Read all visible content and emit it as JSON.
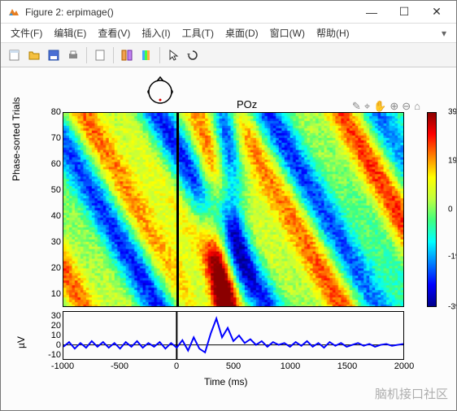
{
  "window": {
    "title": "Figure 2:  erpimage()",
    "min_label": "—",
    "max_label": "☐",
    "close_label": "✕"
  },
  "menu": {
    "items": [
      "文件(F)",
      "编辑(E)",
      "查看(V)",
      "插入(I)",
      "工具(T)",
      "桌面(D)",
      "窗口(W)",
      "帮助(H)"
    ]
  },
  "figure": {
    "channel_label": "POz",
    "background_color": "#ffffff",
    "erpimage": {
      "ylabel": "Phase-sorted Trials",
      "yticks": [
        10,
        20,
        30,
        40,
        50,
        60,
        70,
        80
      ],
      "ylim": [
        5,
        80
      ],
      "xlim": [
        -1000,
        2000
      ],
      "event_time": 0,
      "n_trials": 80,
      "n_time": 120,
      "seed": 7
    },
    "colorbar": {
      "ticks": [
        -39,
        -19,
        0,
        19.5,
        39.1
      ],
      "lim": [
        -39.1,
        39.1
      ],
      "colors": [
        "#00008b",
        "#0000ff",
        "#0080ff",
        "#00ffff",
        "#40ff80",
        "#c0ff40",
        "#ffff00",
        "#ff8000",
        "#ff0000",
        "#8b0000"
      ]
    },
    "erp": {
      "ylabel": "µV",
      "yticks": [
        -10,
        0,
        10,
        20,
        30
      ],
      "ylim": [
        -15,
        35
      ],
      "xlim": [
        -1000,
        2000
      ],
      "line_color": "#0000ff",
      "line_width": 2,
      "points": [
        [
          -1000,
          -2
        ],
        [
          -950,
          3
        ],
        [
          -900,
          -4
        ],
        [
          -850,
          2
        ],
        [
          -800,
          -3
        ],
        [
          -750,
          4
        ],
        [
          -700,
          -2
        ],
        [
          -650,
          3
        ],
        [
          -600,
          -3
        ],
        [
          -550,
          2
        ],
        [
          -500,
          -4
        ],
        [
          -450,
          3
        ],
        [
          -400,
          -2
        ],
        [
          -350,
          4
        ],
        [
          -300,
          -3
        ],
        [
          -250,
          2
        ],
        [
          -200,
          -2
        ],
        [
          -150,
          3
        ],
        [
          -100,
          -4
        ],
        [
          -50,
          2
        ],
        [
          0,
          -3
        ],
        [
          50,
          5
        ],
        [
          100,
          -6
        ],
        [
          150,
          8
        ],
        [
          200,
          -4
        ],
        [
          250,
          -8
        ],
        [
          300,
          12
        ],
        [
          350,
          28
        ],
        [
          400,
          8
        ],
        [
          450,
          18
        ],
        [
          500,
          4
        ],
        [
          550,
          10
        ],
        [
          600,
          2
        ],
        [
          650,
          6
        ],
        [
          700,
          0
        ],
        [
          750,
          4
        ],
        [
          800,
          -2
        ],
        [
          850,
          3
        ],
        [
          900,
          0
        ],
        [
          950,
          2
        ],
        [
          1000,
          -2
        ],
        [
          1050,
          3
        ],
        [
          1100,
          -1
        ],
        [
          1150,
          4
        ],
        [
          1200,
          -2
        ],
        [
          1250,
          2
        ],
        [
          1300,
          -3
        ],
        [
          1350,
          3
        ],
        [
          1400,
          -1
        ],
        [
          1450,
          2
        ],
        [
          1500,
          -2
        ],
        [
          1550,
          0
        ],
        [
          1600,
          2
        ],
        [
          1650,
          -1
        ],
        [
          1700,
          1
        ],
        [
          1750,
          -2
        ],
        [
          1800,
          0
        ],
        [
          1850,
          1
        ],
        [
          1900,
          -1
        ],
        [
          1950,
          0
        ],
        [
          2000,
          1
        ]
      ]
    },
    "xaxis": {
      "label": "Time (ms)",
      "ticks": [
        -1000,
        -500,
        0,
        500,
        1000,
        1500,
        2000
      ]
    },
    "watermark": "脑机接口社区"
  }
}
